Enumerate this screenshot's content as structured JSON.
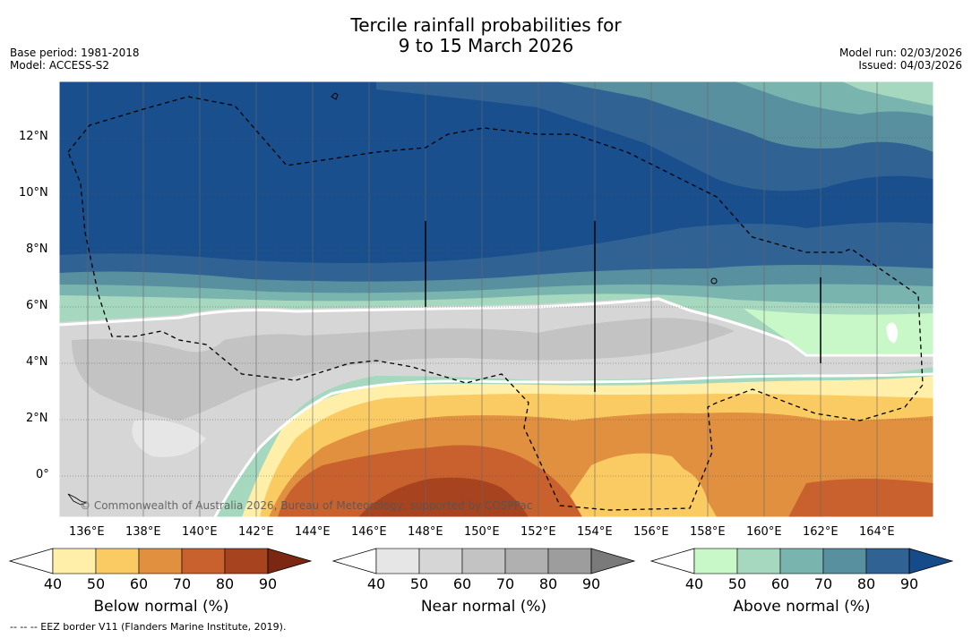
{
  "title": {
    "line1": "Tercile rainfall probabilities for",
    "line2": "9 to 15 March 2026"
  },
  "meta": {
    "base_period": "Base period: 1981-2018",
    "model": "Model: ACCESS-S2",
    "model_run": "Model run: 02/03/2026",
    "issued": "Issued: 04/03/2026"
  },
  "axes": {
    "lon_labels": [
      "136°E",
      "138°E",
      "140°E",
      "142°E",
      "144°E",
      "146°E",
      "148°E",
      "150°E",
      "152°E",
      "154°E",
      "156°E",
      "158°E",
      "160°E",
      "162°E",
      "164°E"
    ],
    "lat_labels": [
      "12°N",
      "10°N",
      "8°N",
      "6°N",
      "4°N",
      "2°N",
      "0°"
    ]
  },
  "credit": "© Commonwealth of Australia 2026, Bureau of Meteorology, supported by COSPPac",
  "legend": {
    "below": {
      "label": "Below normal (%)",
      "ticks": [
        "40",
        "50",
        "60",
        "70",
        "80",
        "90"
      ],
      "colors": [
        "#ffefa8",
        "#fbcb63",
        "#e0903f",
        "#c9612e",
        "#a8431f",
        "#7c2712"
      ]
    },
    "near": {
      "label": "Near normal (%)",
      "ticks": [
        "40",
        "50",
        "60",
        "70",
        "80",
        "90"
      ],
      "colors": [
        "#e6e6e6",
        "#d6d6d6",
        "#c3c3c3",
        "#b0b0b0",
        "#9d9d9d",
        "#7a7a7a"
      ]
    },
    "above": {
      "label": "Above normal (%)",
      "ticks": [
        "40",
        "50",
        "60",
        "70",
        "80",
        "90"
      ],
      "colors": [
        "#c8f8c8",
        "#a6d8c0",
        "#7ab4ae",
        "#58909f",
        "#316294",
        "#144b88"
      ]
    }
  },
  "footer": "--  --  -- EEZ border V11 (Flanders Marine Institute, 2019)."
}
